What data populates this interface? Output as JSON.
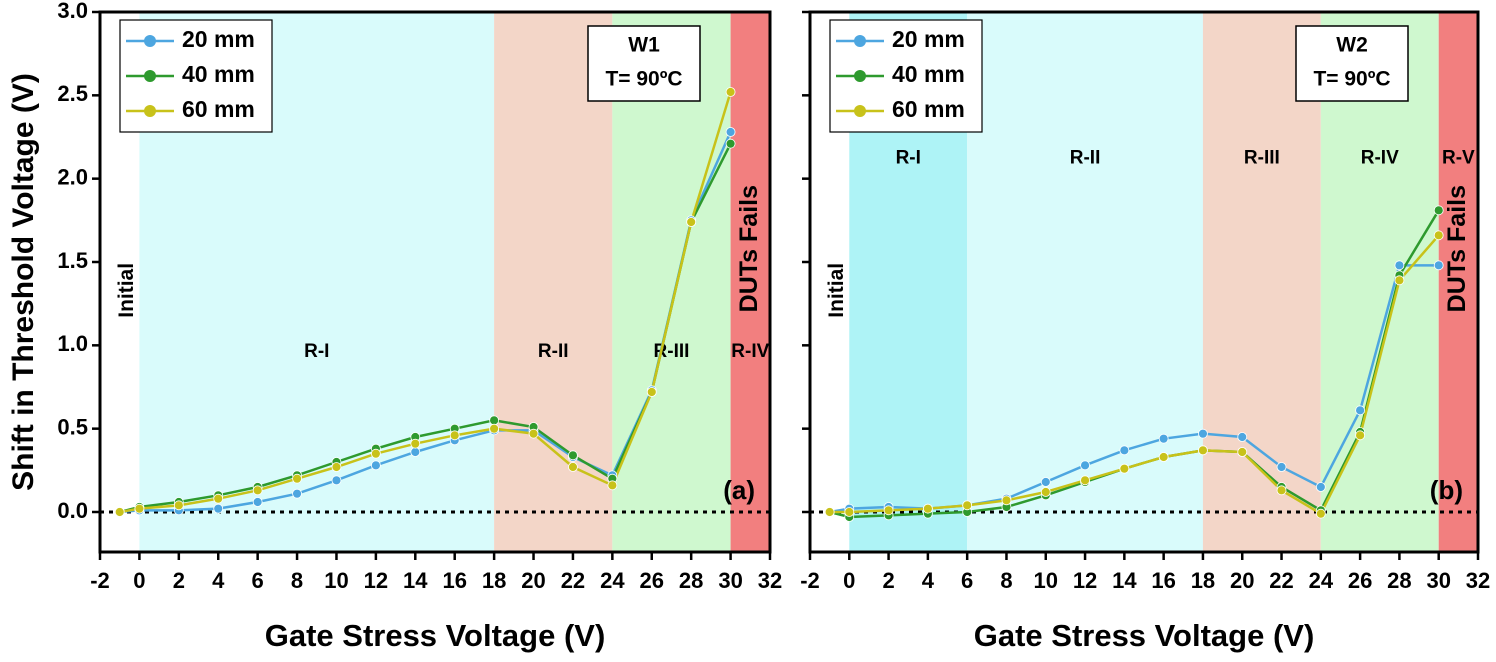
{
  "chart_data": [
    {
      "type": "line",
      "panel_label": "(a)",
      "ylabel": "Shift in Threshold Voltage (V)",
      "xlabel": "Gate Stress Voltage (V)",
      "info_box": [
        "W1",
        "T= 90ºC"
      ],
      "x": [
        -1,
        0,
        2,
        4,
        6,
        8,
        10,
        12,
        14,
        16,
        18,
        20,
        22,
        24,
        26,
        28,
        30
      ],
      "series": [
        {
          "name": "20 mm",
          "color": "#4da6e0",
          "values": [
            0.0,
            0.01,
            0.01,
            0.02,
            0.06,
            0.11,
            0.19,
            0.28,
            0.36,
            0.43,
            0.49,
            0.49,
            0.33,
            0.22,
            0.73,
            1.75,
            2.28
          ]
        },
        {
          "name": "40 mm",
          "color": "#2e9a2e",
          "values": [
            0.0,
            0.03,
            0.06,
            0.1,
            0.15,
            0.22,
            0.3,
            0.38,
            0.45,
            0.5,
            0.55,
            0.51,
            0.34,
            0.2,
            0.72,
            1.74,
            2.21
          ]
        },
        {
          "name": "60 mm",
          "color": "#c8c21a",
          "values": [
            0.0,
            0.02,
            0.04,
            0.08,
            0.13,
            0.2,
            0.27,
            0.35,
            0.41,
            0.46,
            0.5,
            0.47,
            0.27,
            0.16,
            0.72,
            1.74,
            2.52
          ]
        }
      ],
      "regions": [
        {
          "label": "R-I",
          "start": 0,
          "end": 18,
          "color": "#d9fbfb"
        },
        {
          "label": "R-II",
          "start": 18,
          "end": 24,
          "color": "#f3d6c8"
        },
        {
          "label": "R-III",
          "start": 24,
          "end": 30,
          "color": "#cff8cf"
        },
        {
          "label": "R-IV",
          "start": 30,
          "end": 32,
          "color": "#f27f7f"
        }
      ],
      "initial_label": "Initial",
      "fail_label": "DUTs Fails",
      "hline": 0,
      "xlim": [
        -2,
        32
      ],
      "ylim": [
        -0.24,
        3.0
      ],
      "xticks": [
        -2,
        0,
        2,
        4,
        6,
        8,
        10,
        12,
        14,
        16,
        18,
        20,
        22,
        24,
        26,
        28,
        30,
        32
      ],
      "yticks": [
        {
          "value": 0,
          "label": "0.0"
        },
        {
          "value": 0.5,
          "label": "0.5"
        },
        {
          "value": 1.0,
          "label": "1.0"
        },
        {
          "value": 1.5,
          "label": "1.5"
        },
        {
          "value": 2.0,
          "label": "2.0"
        },
        {
          "value": 2.5,
          "label": "2.5"
        },
        {
          "value": 3.0,
          "label": "3.0"
        }
      ],
      "legend": "upper left"
    },
    {
      "type": "line",
      "panel_label": "(b)",
      "xlabel": "Gate Stress Voltage (V)",
      "info_box": [
        "W2",
        "T= 90ºC"
      ],
      "x": [
        -1,
        0,
        2,
        4,
        6,
        8,
        10,
        12,
        14,
        16,
        18,
        20,
        22,
        24,
        26,
        28,
        30
      ],
      "series": [
        {
          "name": "20 mm",
          "color": "#4da6e0",
          "values": [
            0.0,
            0.02,
            0.03,
            0.02,
            0.04,
            0.08,
            0.18,
            0.28,
            0.37,
            0.44,
            0.47,
            0.45,
            0.27,
            0.15,
            0.61,
            1.48,
            1.48
          ]
        },
        {
          "name": "40 mm",
          "color": "#2e9a2e",
          "values": [
            0.0,
            -0.03,
            -0.02,
            -0.01,
            0.0,
            0.03,
            0.1,
            0.18,
            0.26,
            0.33,
            0.37,
            0.36,
            0.15,
            0.01,
            0.48,
            1.42,
            1.81
          ]
        },
        {
          "name": "60 mm",
          "color": "#c8c21a",
          "values": [
            0.0,
            0.0,
            0.01,
            0.02,
            0.04,
            0.07,
            0.12,
            0.19,
            0.26,
            0.33,
            0.37,
            0.36,
            0.13,
            -0.01,
            0.46,
            1.39,
            1.66
          ]
        }
      ],
      "regions": [
        {
          "label": "R-I",
          "start": 0,
          "end": 6,
          "color": "#aef3f6"
        },
        {
          "label": "R-II",
          "start": 6,
          "end": 18,
          "color": "#d9fbfb"
        },
        {
          "label": "R-III",
          "start": 18,
          "end": 24,
          "color": "#f3d6c8"
        },
        {
          "label": "R-IV",
          "start": 24,
          "end": 30,
          "color": "#cff8cf"
        },
        {
          "label": "R-V",
          "start": 30,
          "end": 32,
          "color": "#f27f7f"
        }
      ],
      "initial_label": "Initial",
      "fail_label": "DUTs Fails",
      "hline": 0,
      "xlim": [
        -2,
        32
      ],
      "ylim": [
        -0.24,
        3.0
      ],
      "xticks": [
        -2,
        0,
        2,
        4,
        6,
        8,
        10,
        12,
        14,
        16,
        18,
        20,
        22,
        24,
        26,
        28,
        30,
        32
      ],
      "yticks": [
        0,
        0.5,
        1.0,
        1.5,
        2.0,
        2.5,
        3.0
      ],
      "ytick_labels": false,
      "legend": "upper left"
    }
  ]
}
